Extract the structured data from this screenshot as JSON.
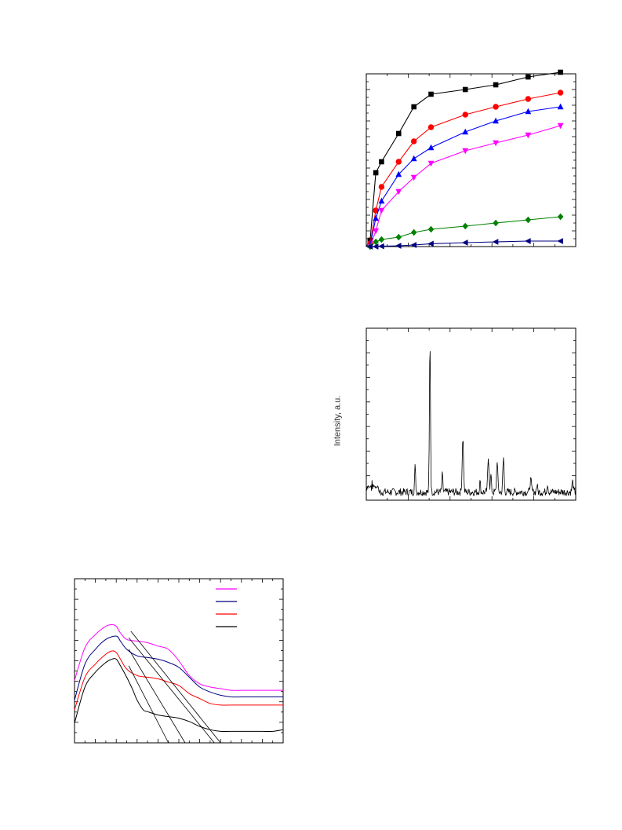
{
  "chart_data": [
    {
      "type": "line",
      "title": "",
      "xlabel": "",
      "ylabel": "",
      "xlim": [
        0,
        11
      ],
      "ylim": [
        0,
        11
      ],
      "grid": false,
      "series": [
        {
          "marker": "square",
          "color": "#000000",
          "x": [
            0.2,
            0.5,
            0.8,
            1.7,
            2.5,
            3.4,
            5.2,
            6.8,
            8.5,
            10.2
          ],
          "y": [
            0.4,
            4.7,
            5.4,
            7.2,
            8.9,
            9.7,
            10.0,
            10.3,
            10.8,
            11.1
          ]
        },
        {
          "marker": "circle",
          "color": "#ff0000",
          "x": [
            0.2,
            0.5,
            0.8,
            1.7,
            2.5,
            3.4,
            5.2,
            6.8,
            8.5,
            10.2
          ],
          "y": [
            0.2,
            2.3,
            3.8,
            5.4,
            6.7,
            7.6,
            8.4,
            8.9,
            9.4,
            9.8
          ]
        },
        {
          "marker": "triangle-up",
          "color": "#0000ff",
          "x": [
            0.2,
            0.5,
            0.8,
            1.7,
            2.5,
            3.4,
            5.2,
            6.8,
            8.5,
            10.2
          ],
          "y": [
            0.1,
            1.8,
            2.9,
            4.6,
            5.6,
            6.3,
            7.3,
            8.0,
            8.6,
            8.9
          ]
        },
        {
          "marker": "triangle-down",
          "color": "#ff00ff",
          "x": [
            0.2,
            0.5,
            0.8,
            1.7,
            2.5,
            3.4,
            5.2,
            6.8,
            8.5,
            10.2
          ],
          "y": [
            0.0,
            1.0,
            2.3,
            3.5,
            4.4,
            5.3,
            6.1,
            6.6,
            7.1,
            7.7
          ]
        },
        {
          "marker": "diamond",
          "color": "#008000",
          "x": [
            0.2,
            0.5,
            0.8,
            1.7,
            2.5,
            3.4,
            5.2,
            6.8,
            8.5,
            10.2
          ],
          "y": [
            0.0,
            0.3,
            0.45,
            0.6,
            0.9,
            1.1,
            1.3,
            1.5,
            1.7,
            1.9
          ]
        },
        {
          "marker": "triangle-left",
          "color": "#000080",
          "x": [
            0.2,
            0.5,
            0.8,
            1.7,
            2.5,
            3.4,
            5.2,
            6.8,
            8.5,
            10.2
          ],
          "y": [
            0.0,
            0.0,
            0.02,
            0.05,
            0.1,
            0.18,
            0.25,
            0.3,
            0.35,
            0.35
          ]
        }
      ]
    },
    {
      "type": "line",
      "title": "",
      "xlabel": "",
      "ylabel": "Intensity, a.u.",
      "xlim": [
        0,
        100
      ],
      "ylim": [
        0,
        100
      ],
      "grid": false,
      "noise_level": 3,
      "peaks": [
        {
          "x": 23.3,
          "y": 15,
          "w": 0.35
        },
        {
          "x": 30.4,
          "y": 90,
          "w": 0.35
        },
        {
          "x": 36.3,
          "y": 10,
          "w": 0.35
        },
        {
          "x": 46.1,
          "y": 32,
          "w": 0.45
        },
        {
          "x": 54.3,
          "y": 6,
          "w": 0.35
        },
        {
          "x": 58.3,
          "y": 20,
          "w": 0.45
        },
        {
          "x": 59.5,
          "y": 10,
          "w": 0.35
        },
        {
          "x": 62.5,
          "y": 19,
          "w": 0.4
        },
        {
          "x": 65.5,
          "y": 20,
          "w": 0.4
        },
        {
          "x": 78.5,
          "y": 7,
          "w": 0.5
        },
        {
          "x": 81.5,
          "y": 4,
          "w": 0.4
        },
        {
          "x": 86.5,
          "y": 5,
          "w": 0.4
        },
        {
          "x": 98.5,
          "y": 6,
          "w": 0.4
        }
      ]
    },
    {
      "type": "line",
      "title": "",
      "xlabel": "",
      "ylabel": "",
      "xlim": [
        0,
        100
      ],
      "ylim": [
        0,
        100
      ],
      "grid": false,
      "legend": "top-right",
      "legend_colors": [
        "#ff00ff",
        "#000080",
        "#ff0000",
        "#000000"
      ],
      "series": [
        {
          "color": "#ff00ff",
          "x": [
            0,
            5,
            10,
            15,
            18,
            20,
            22,
            25,
            30,
            35,
            40,
            45,
            50,
            55,
            60,
            65,
            70,
            75,
            80,
            85,
            90,
            95,
            100
          ],
          "y": [
            38,
            58,
            66,
            71,
            72,
            71,
            67,
            63,
            62,
            61,
            59,
            57,
            50,
            41,
            36,
            34,
            33,
            32,
            32,
            32,
            32,
            32,
            32
          ]
        },
        {
          "color": "#000080",
          "x": [
            0,
            5,
            10,
            15,
            20,
            22,
            25,
            30,
            35,
            40,
            45,
            50,
            55,
            60,
            65,
            70,
            75,
            80,
            85,
            90,
            95,
            100
          ],
          "y": [
            26,
            48,
            57,
            63,
            65,
            62,
            57,
            53,
            52,
            51,
            49,
            46,
            40,
            34,
            31,
            29,
            28,
            28,
            28,
            28,
            28,
            28
          ]
        },
        {
          "color": "#ff0000",
          "x": [
            0,
            5,
            10,
            15,
            18,
            20,
            22,
            25,
            30,
            35,
            40,
            45,
            50,
            55,
            60,
            65,
            70,
            75,
            80,
            85,
            90,
            95,
            100
          ],
          "y": [
            20,
            40,
            48,
            54,
            56,
            55,
            51,
            45,
            41,
            40,
            39,
            37,
            35,
            30,
            27,
            24,
            23,
            23,
            23,
            23,
            23,
            23,
            23
          ]
        },
        {
          "color": "#000000",
          "x": [
            0,
            5,
            10,
            15,
            18,
            20,
            22,
            25,
            28,
            30,
            33,
            35,
            40,
            45,
            50,
            55,
            60,
            65,
            70,
            75,
            80,
            85,
            90,
            95,
            100
          ],
          "y": [
            12,
            34,
            43,
            49,
            51,
            51,
            47,
            40,
            32,
            26,
            20,
            19,
            17,
            16,
            15,
            13,
            10,
            8,
            7,
            7,
            7,
            7,
            7,
            7,
            8
          ]
        }
      ],
      "tangents": [
        {
          "x": [
            26,
            45
          ],
          "y": [
            47,
            0
          ]
        },
        {
          "x": [
            26,
            53
          ],
          "y": [
            57,
            0
          ]
        },
        {
          "x": [
            26,
            67
          ],
          "y": [
            64,
            0
          ]
        },
        {
          "x": [
            27,
            70
          ],
          "y": [
            68,
            0
          ]
        }
      ]
    }
  ]
}
